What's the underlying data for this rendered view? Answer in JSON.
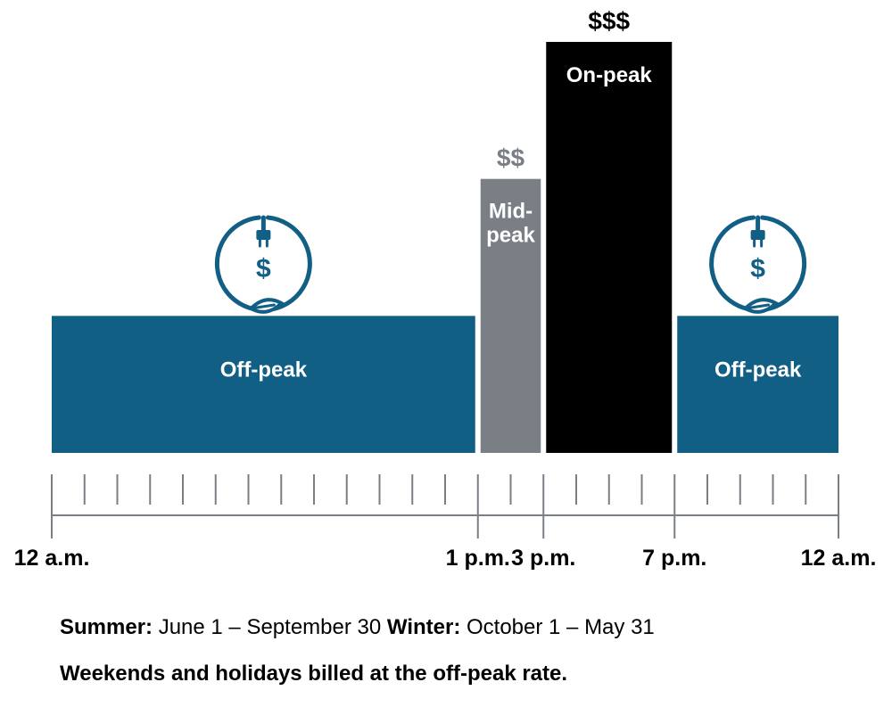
{
  "chart_data": {
    "type": "bar",
    "x_unit": "time of day",
    "x_range_hours": [
      0,
      24
    ],
    "periods": [
      {
        "label": "Off-peak",
        "start": 0,
        "end": 13,
        "level": 1,
        "price": "",
        "color": "#125f85",
        "icon": "plug-dollar-leaf-icon"
      },
      {
        "label": "Mid-\npeak",
        "start": 13,
        "end": 15,
        "level": 2,
        "price": "$$",
        "price_color": "#7a7f85",
        "color": "#7a7f85"
      },
      {
        "label": "On-peak",
        "start": 15,
        "end": 19,
        "level": 3,
        "price": "$$$",
        "price_color": "#000000",
        "color": "#000000"
      },
      {
        "label": "Off-peak",
        "start": 19,
        "end": 24,
        "level": 1,
        "price": "",
        "color": "#125f85",
        "icon": "plug-dollar-leaf-icon"
      }
    ],
    "level_scale": [
      0,
      3
    ],
    "minor_tick_step_hours": 1,
    "tick_labels": [
      {
        "hour": 0,
        "label": "12 a.m."
      },
      {
        "hour": 13,
        "label": "1 p.m."
      },
      {
        "hour": 15,
        "label": "3 p.m."
      },
      {
        "hour": 19,
        "label": "7 p.m."
      },
      {
        "hour": 24,
        "label": "12 a.m."
      }
    ]
  },
  "colors": {
    "off_peak": "#125f85",
    "mid_peak": "#7a7f85",
    "on_peak": "#000000",
    "axis": "#7a7f85"
  },
  "footer": {
    "summer_label": "Summer:",
    "summer_dates": " June 1 – September 30 ",
    "winter_label": "Winter:",
    "winter_dates": " October 1 – May 31",
    "note": "Weekends and holidays billed at the off-peak rate."
  }
}
